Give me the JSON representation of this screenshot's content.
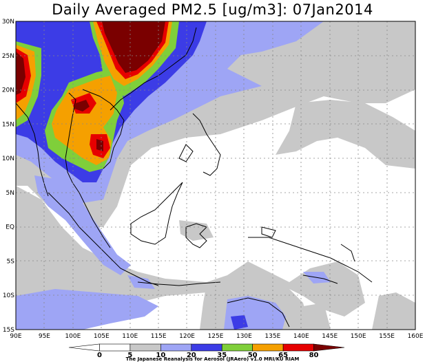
{
  "title": "Daily Averaged PM2.5 [ug/m3]: 07Jan2014",
  "credit": "The Japanese Reanalysis for Aerosol (JRAero) v1.0 MRI/KU RIAM",
  "lon_ticks": [
    "90E",
    "95E",
    "100E",
    "105E",
    "110E",
    "115E",
    "120E",
    "125E",
    "130E",
    "135E",
    "140E",
    "145E",
    "150E",
    "155E",
    "160E"
  ],
  "lat_ticks": [
    "30N",
    "25N",
    "20N",
    "15N",
    "10N",
    "5N",
    "EQ",
    "5S",
    "10S",
    "15S"
  ],
  "colorbar": {
    "labels": [
      "0",
      "5",
      "10",
      "20",
      "35",
      "50",
      "65",
      "80"
    ],
    "colors": [
      "#ffffff",
      "#ffffff",
      "#c8c8c8",
      "#9ea5f5",
      "#3c3ce6",
      "#7fcf3a",
      "#f5a000",
      "#e60000",
      "#7a0000"
    ]
  }
}
